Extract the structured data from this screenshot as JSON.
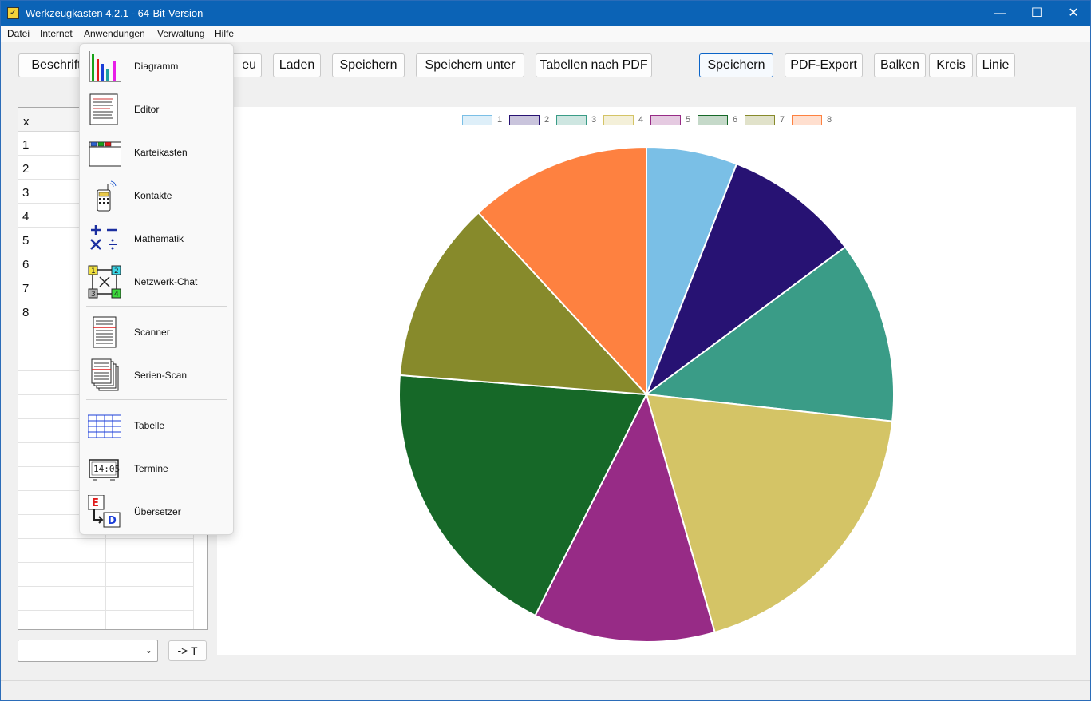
{
  "window": {
    "title": "Werkzeugkasten 4.2.1 - 64-Bit-Version"
  },
  "titlebar_buttons": {
    "minimize": "—",
    "maximize": "☐",
    "close": "✕"
  },
  "menubar": [
    "Datei",
    "Internet",
    "Anwendungen",
    "Verwaltung",
    "Hilfe"
  ],
  "toolbar": {
    "beschriftung": "Beschrift",
    "neu": "eu",
    "laden": "Laden",
    "speichern": "Speichern",
    "speichern_unter": "Speichern unter",
    "tabellen_pdf": "Tabellen nach PDF",
    "speichern2": "Speichern",
    "pdf_export": "PDF-Export",
    "balken": "Balken",
    "kreis": "Kreis",
    "linie": "Linie"
  },
  "table": {
    "header": "x",
    "rows": [
      "1",
      "2",
      "3",
      "4",
      "5",
      "6",
      "7",
      "8"
    ]
  },
  "bottom": {
    "combo_value": "",
    "convert_button": "-> T"
  },
  "anwendungen_menu": {
    "items": [
      {
        "label": "Diagramm",
        "icon": "bar-chart-icon"
      },
      {
        "label": "Editor",
        "icon": "document-icon"
      },
      {
        "label": "Karteikasten",
        "icon": "card-box-icon"
      },
      {
        "label": "Kontakte",
        "icon": "phone-icon"
      },
      {
        "label": "Mathematik",
        "icon": "math-operators-icon"
      },
      {
        "label": "Netzwerk-Chat",
        "icon": "network-icon"
      },
      {
        "label": "Scanner",
        "icon": "scanner-icon"
      },
      {
        "label": "Serien-Scan",
        "icon": "serial-scan-icon"
      },
      {
        "label": "Tabelle",
        "icon": "table-icon"
      },
      {
        "label": "Termine",
        "icon": "clock-icon"
      },
      {
        "label": "Übersetzer",
        "icon": "translator-icon"
      }
    ]
  },
  "chart_data": {
    "type": "pie",
    "categories": [
      "1",
      "2",
      "3",
      "4",
      "5",
      "6",
      "7",
      "8"
    ],
    "values": [
      6,
      9,
      12,
      19,
      12,
      19,
      12,
      12
    ],
    "colors": [
      "#7abfe6",
      "#271273",
      "#3a9c87",
      "#d4c466",
      "#972b86",
      "#166828",
      "#878a2b",
      "#fe8140"
    ],
    "legend_position": "top"
  }
}
